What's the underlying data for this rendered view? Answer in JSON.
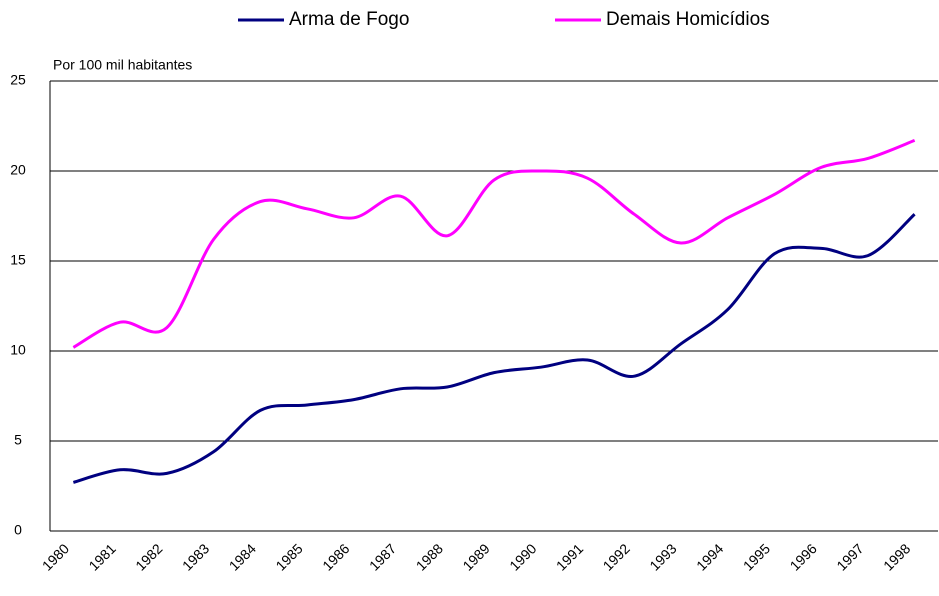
{
  "chart_data": {
    "type": "line",
    "y_axis_label": "Por 100 mil habitantes",
    "categories": [
      "1980",
      "1981",
      "1982",
      "1983",
      "1984",
      "1985",
      "1986",
      "1987",
      "1988",
      "1989",
      "1990",
      "1991",
      "1992",
      "1993",
      "1994",
      "1995",
      "1996",
      "1997",
      "1998"
    ],
    "series": [
      {
        "name": "Arma de Fogo",
        "color": "#000080",
        "values": [
          2.7,
          3.4,
          3.2,
          4.4,
          6.7,
          7.0,
          7.3,
          7.9,
          8.0,
          8.8,
          9.1,
          9.5,
          8.6,
          10.4,
          12.3,
          15.4,
          15.7,
          15.3,
          17.6
        ]
      },
      {
        "name": "Demais Homicídios",
        "color": "#ff00ff",
        "values": [
          10.2,
          11.6,
          11.3,
          16.2,
          18.3,
          17.9,
          17.4,
          18.6,
          16.4,
          19.5,
          20.0,
          19.6,
          17.6,
          16.0,
          17.4,
          18.7,
          20.2,
          20.7,
          21.7
        ]
      }
    ],
    "ylim": [
      0,
      25
    ],
    "yticks": [
      0,
      5,
      10,
      15,
      20,
      25
    ],
    "grid": true
  }
}
